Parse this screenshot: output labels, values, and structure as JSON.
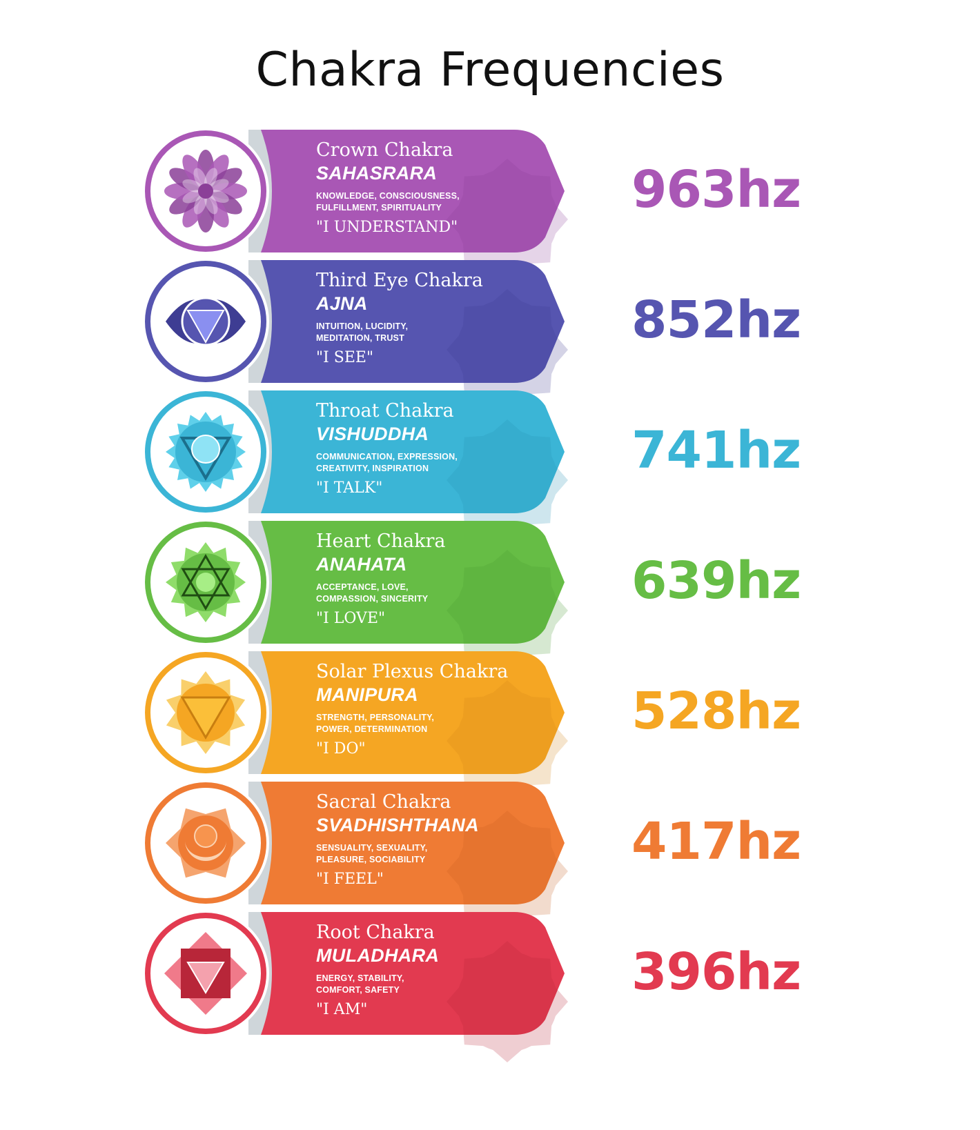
{
  "title": "Chakra Frequencies",
  "chakras": [
    {
      "name": "Crown Chakra",
      "sanskrit": "SAHASRARA",
      "qualities": [
        "KNOWLEDGE, CONSCIOUSNESS,",
        "FULFILLMENT, SPIRITUALITY"
      ],
      "mantra": "\"I UNDERSTAND\"",
      "frequency": "963hz",
      "color": "#a957b5",
      "dark": "#8b3f98",
      "icon": "lotus-flower-icon"
    },
    {
      "name": "Third Eye Chakra",
      "sanskrit": "AJNA",
      "qualities": [
        "INTUITION, LUCIDITY,",
        "MEDITATION, TRUST"
      ],
      "mantra": "\"I SEE\"",
      "frequency": "852hz",
      "color": "#5655b0",
      "dark": "#3e3d93",
      "icon": "third-eye-icon"
    },
    {
      "name": "Throat Chakra",
      "sanskrit": "VISHUDDHA",
      "qualities": [
        "COMMUNICATION, EXPRESSION,",
        "CREATIVITY, INSPIRATION"
      ],
      "mantra": "\"I TALK\"",
      "frequency": "741hz",
      "color": "#3bb5d6",
      "dark": "#2593b3",
      "icon": "throat-lotus-icon"
    },
    {
      "name": "Heart Chakra",
      "sanskrit": "ANAHATA",
      "qualities": [
        "ACCEPTANCE, LOVE,",
        "COMPASSION, SINCERITY"
      ],
      "mantra": "\"I LOVE\"",
      "frequency": "639hz",
      "color": "#66bd45",
      "dark": "#4b9c31",
      "icon": "hexagram-icon"
    },
    {
      "name": "Solar Plexus Chakra",
      "sanskrit": "MANIPURA",
      "qualities": [
        "STRENGTH, PERSONALITY,",
        "POWER, DETERMINATION"
      ],
      "mantra": "\"I DO\"",
      "frequency": "528hz",
      "color": "#f5a623",
      "dark": "#d4861a",
      "icon": "sun-triangle-icon"
    },
    {
      "name": "Sacral Chakra",
      "sanskrit": "SVADHISHTHANA",
      "qualities": [
        "SENSUALITY, SEXUALITY,",
        "PLEASURE, SOCIABILITY"
      ],
      "mantra": "\"I FEEL\"",
      "frequency": "417hz",
      "color": "#ef7b34",
      "dark": "#c95e22",
      "icon": "crescent-lotus-icon"
    },
    {
      "name": "Root Chakra",
      "sanskrit": "MULADHARA",
      "qualities": [
        "ENERGY, STABILITY,",
        "COMFORT, SAFETY"
      ],
      "mantra": "\"I AM\"",
      "frequency": "396hz",
      "color": "#e23a50",
      "dark": "#b82639",
      "icon": "square-triangle-icon"
    }
  ]
}
